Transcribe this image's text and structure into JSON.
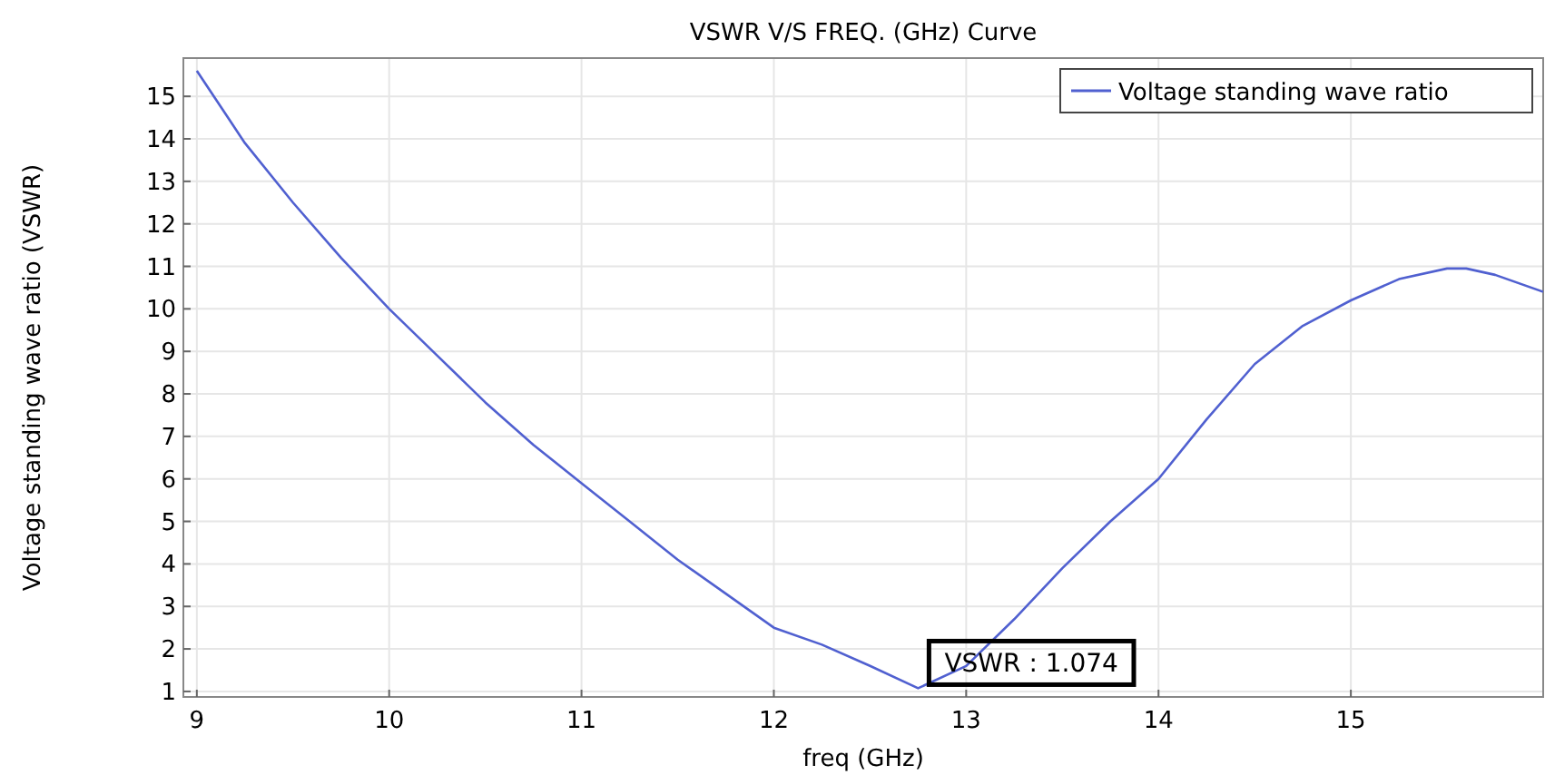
{
  "chart_data": {
    "type": "line",
    "title": "VSWR V/S FREQ. (GHz) Curve",
    "xlabel": "freq (GHz)",
    "ylabel": "Voltage standing wave ratio (VSWR)",
    "x": [
      9,
      9.25,
      9.5,
      9.75,
      10,
      10.25,
      10.5,
      10.75,
      11,
      11.25,
      11.5,
      11.75,
      12,
      12.25,
      12.5,
      12.75,
      13,
      13.25,
      13.5,
      13.75,
      14,
      14.25,
      14.5,
      14.75,
      15,
      15.25,
      15.5,
      15.6,
      15.75,
      16
    ],
    "series": [
      {
        "name": "Voltage standing wave ratio",
        "color": "#5060d0",
        "values": [
          15.6,
          13.9,
          12.5,
          11.2,
          10.0,
          8.9,
          7.8,
          6.8,
          5.9,
          5.0,
          4.1,
          3.3,
          2.5,
          2.1,
          1.6,
          1.074,
          1.6,
          2.7,
          3.9,
          5.0,
          6.0,
          7.4,
          8.7,
          9.6,
          10.2,
          10.7,
          10.95,
          10.95,
          10.8,
          10.4
        ]
      }
    ],
    "annotations": [
      {
        "text": "VSWR : 1.074",
        "x": 12.75,
        "y": 1.074
      }
    ],
    "xlim": [
      8.93,
      16
    ],
    "ylim": [
      0.87,
      15.9
    ],
    "xticks": [
      9,
      10,
      11,
      12,
      13,
      14,
      15
    ],
    "yticks": [
      1,
      2,
      3,
      4,
      5,
      6,
      7,
      8,
      9,
      10,
      11,
      12,
      13,
      14,
      15
    ],
    "grid": true,
    "legend": "top right",
    "line_style": "solid",
    "marker": "none"
  }
}
